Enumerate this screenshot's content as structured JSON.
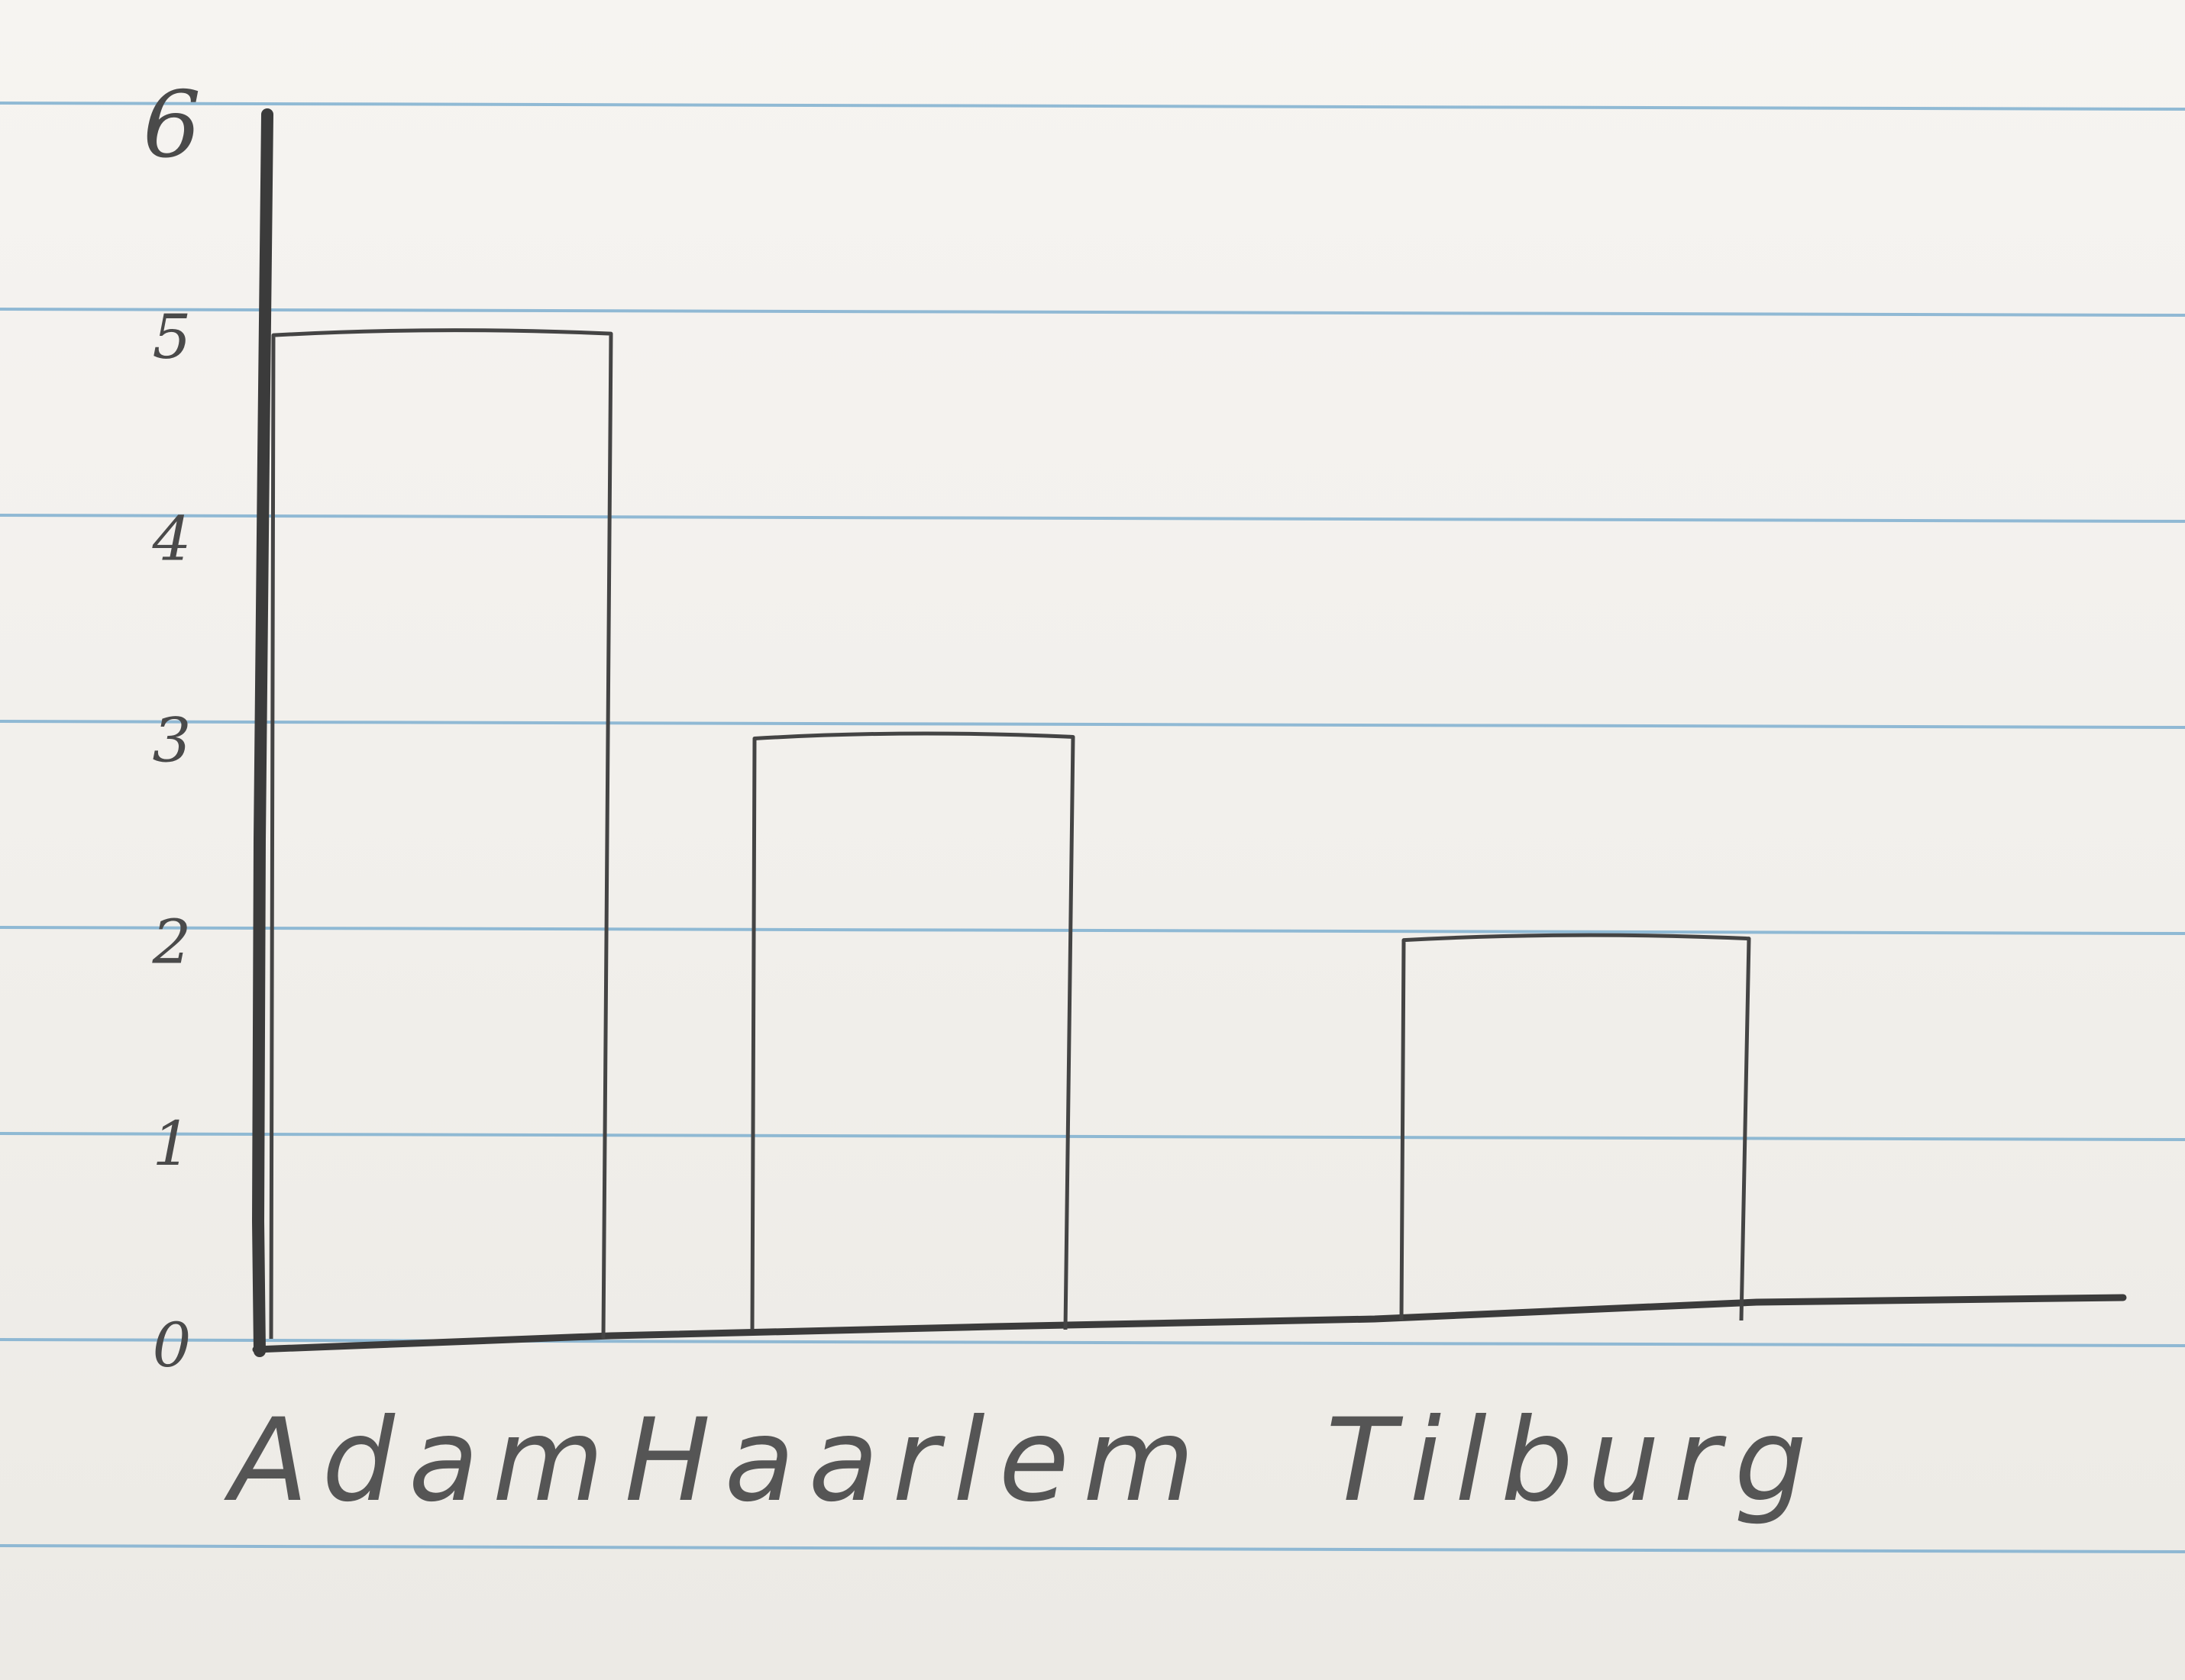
{
  "chart_data": {
    "type": "bar",
    "categories": [
      "Adam",
      "Haarlem",
      "Tilburg"
    ],
    "values": [
      5,
      3,
      2
    ],
    "yticks": [
      "0",
      "1",
      "2",
      "3",
      "4",
      "5",
      "6"
    ],
    "ylim": [
      0,
      6
    ],
    "title": "",
    "xlabel": "",
    "ylabel": "",
    "grid": false,
    "colors": {
      "ink": "#444444",
      "paper": "#f4f2ee",
      "rule": "#7fb0d0"
    }
  }
}
